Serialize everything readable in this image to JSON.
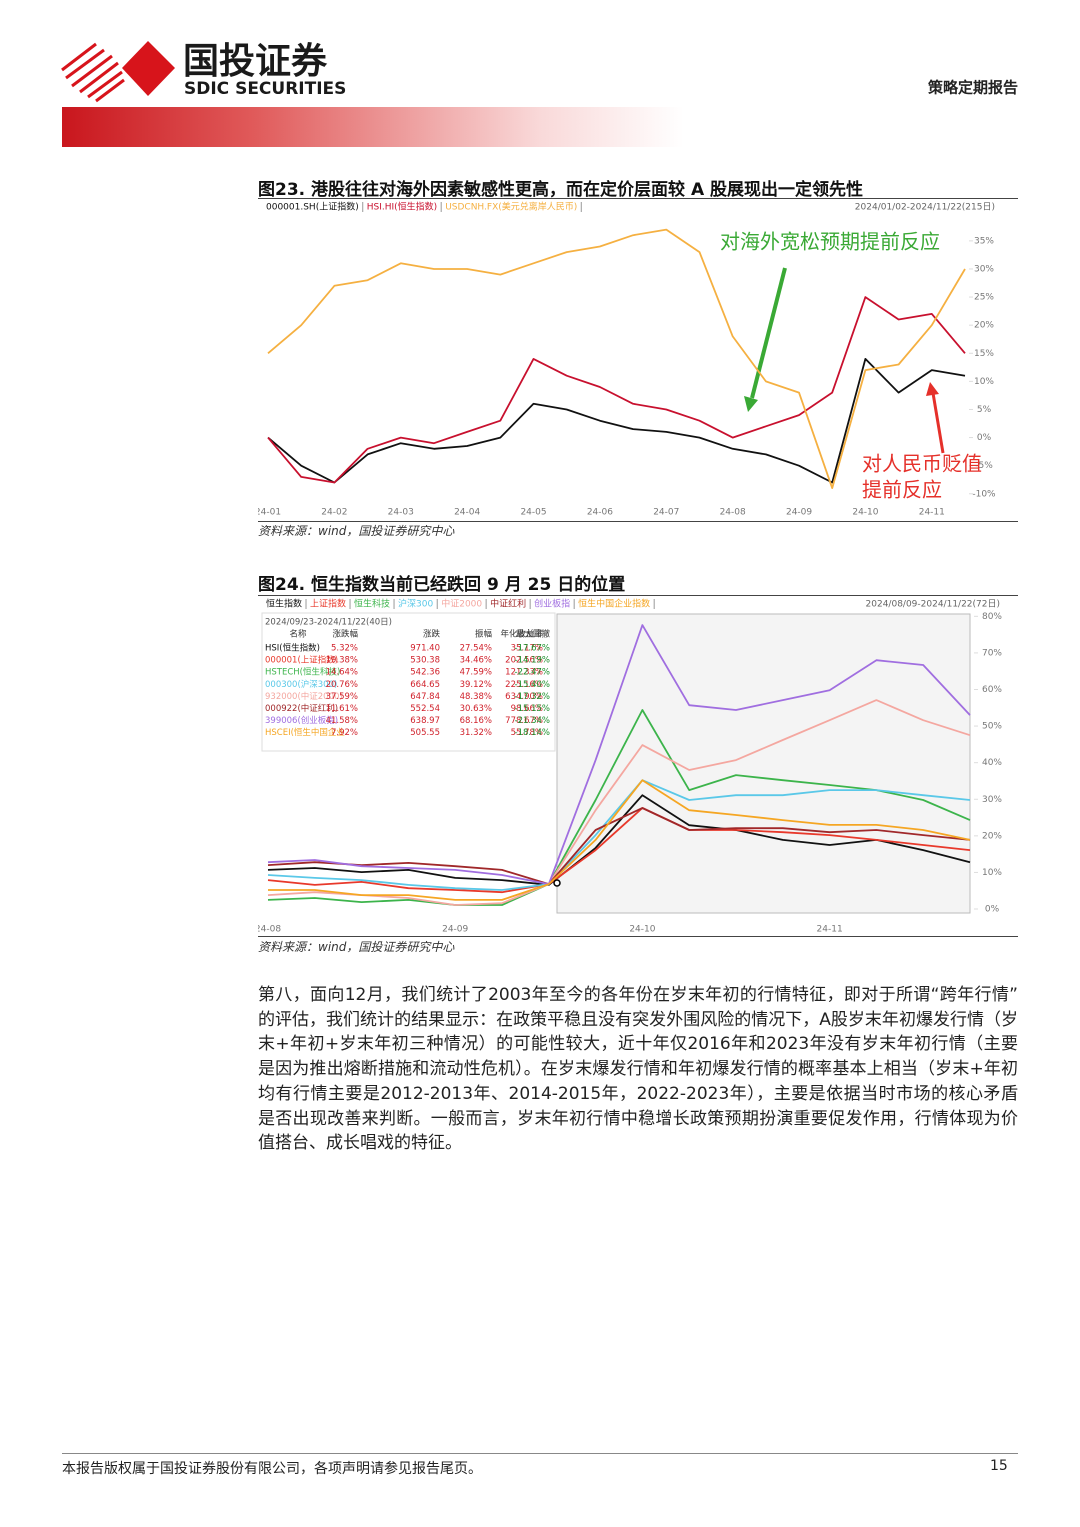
{
  "header": {
    "logo_cn": "国投证券",
    "logo_en": "SDIC SECURITIES",
    "report_type": "策略定期报告"
  },
  "figures": [
    {
      "caption": "图23. 港股往往对海外因素敏感性更高，而在定价层面较 A 股展现出一定领先性",
      "source": "资料来源：wind，国投证券研究中心",
      "chart_data": {
        "type": "line",
        "date_range": "2024/01/02-2024/11/22(215日)",
        "categories": [
          "24-01",
          null,
          "24-02",
          null,
          "24-03",
          null,
          "24-04",
          null,
          "24-05",
          null,
          "24-06",
          null,
          "24-07",
          null,
          "24-08",
          null,
          "24-09",
          null,
          "24-10",
          null,
          "24-11",
          null
        ],
        "ylim": [
          -12,
          38
        ],
        "yticks": [
          {
            "value": -10,
            "label": "-10%"
          },
          {
            "value": -5,
            "label": "-5%"
          },
          {
            "value": 0,
            "label": "0%"
          },
          {
            "value": 5,
            "label": "5%"
          },
          {
            "value": 10,
            "label": "10%"
          },
          {
            "value": 15,
            "label": "15%"
          },
          {
            "value": 20,
            "label": "20%"
          },
          {
            "value": 25,
            "label": "25%"
          },
          {
            "value": 30,
            "label": "30%"
          },
          {
            "value": 35,
            "label": "35%"
          }
        ],
        "grid": false,
        "series": [
          {
            "name": "000001.SH(上证指数)",
            "color": "#111111",
            "values": [
              0,
              -5,
              -8,
              -3,
              -1,
              -2,
              -1.5,
              0,
              6,
              5,
              3,
              1.5,
              1,
              0,
              -2,
              -3,
              -5,
              -8,
              14,
              8,
              12,
              11
            ]
          },
          {
            "name": "HSI.HI(恒生指数)",
            "color": "#c8102e",
            "values": [
              0,
              -7,
              -8,
              -2,
              0,
              -1,
              1,
              3,
              14,
              11,
              9,
              6,
              5,
              3,
              0,
              2,
              4,
              8,
              25,
              21,
              22,
              15
            ]
          },
          {
            "name": "USDCNH.FX(美元兑离岸人民币)",
            "color": "#f5b041",
            "values": [
              15,
              20,
              27,
              28,
              31,
              30,
              30,
              29,
              31,
              33,
              34,
              36,
              37,
              33,
              18,
              10,
              8,
              -9,
              12,
              13,
              20,
              30
            ]
          }
        ],
        "annotations": [
          {
            "lines": [
              "对海外宽松预期提前反应"
            ],
            "color": "#3aa935"
          },
          {
            "lines": [
              "对人民币贬值",
              "提前反应"
            ],
            "color": "#e5302a"
          }
        ]
      }
    },
    {
      "caption": "图24. 恒生指数当前已经跌回 9 月 25 日的位置",
      "source": "资料来源：wind，国投证券研究中心",
      "chart_data": {
        "type": "line",
        "date_range": "2024/08/09-2024/11/22(72日)",
        "categories": [
          "24-08",
          null,
          null,
          null,
          "24-09",
          null,
          null,
          null,
          "24-10",
          null,
          null,
          null,
          "24-11",
          null,
          null,
          null
        ],
        "ylim": [
          -3,
          82
        ],
        "yticks": [
          {
            "value": 0,
            "label": "0%"
          },
          {
            "value": 10,
            "label": "10%"
          },
          {
            "value": 20,
            "label": "20%"
          },
          {
            "value": 30,
            "label": "30%"
          },
          {
            "value": 40,
            "label": "40%"
          },
          {
            "value": 50,
            "label": "50%"
          },
          {
            "value": 60,
            "label": "60%"
          },
          {
            "value": 70,
            "label": "70%"
          },
          {
            "value": 80,
            "label": "80%"
          }
        ],
        "grid": false,
        "series": [
          {
            "name": "恒生指数",
            "color": "#111111",
            "values": [
              10.7,
              11.2,
              10.1,
              10.7,
              8.5,
              7.9,
              6.6,
              16.7,
              31.1,
              22.9,
              21.6,
              18.9,
              17.5,
              18.9,
              16.1,
              12.8
            ]
          },
          {
            "name": "上证指数",
            "color": "#e8392b",
            "values": [
              7.9,
              6.6,
              7.4,
              5.7,
              5.2,
              4.6,
              6.8,
              16.1,
              27.6,
              21.6,
              21.6,
              21.0,
              20.2,
              18.9,
              17.5,
              16.1
            ]
          },
          {
            "name": "恒生科技",
            "color": "#3cb44b",
            "values": [
              2.5,
              3.0,
              1.9,
              2.5,
              1.1,
              1.1,
              6.8,
              29.8,
              54.4,
              32.5,
              36.6,
              35.2,
              33.9,
              32.5,
              29.8,
              24.3
            ]
          },
          {
            "name": "沪深300",
            "color": "#5ac8e8",
            "values": [
              9.3,
              8.5,
              7.9,
              6.6,
              5.7,
              5.2,
              6.8,
              20.2,
              35.2,
              29.8,
              31.1,
              31.1,
              32.5,
              32.5,
              31.1,
              29.8
            ]
          },
          {
            "name": "中证2000",
            "color": "#f4a7a0",
            "values": [
              3.8,
              4.6,
              3.8,
              3.0,
              1.1,
              1.6,
              6.8,
              27.0,
              44.8,
              38.0,
              40.7,
              46.2,
              51.6,
              57.1,
              51.6,
              47.5
            ]
          },
          {
            "name": "中证红利",
            "color": "#a0282a",
            "values": [
              12.0,
              12.8,
              12.0,
              12.6,
              11.7,
              10.7,
              6.8,
              21.6,
              27.6,
              21.6,
              22.1,
              22.1,
              21.0,
              21.6,
              20.2,
              18.9
            ]
          },
          {
            "name": "创业板指",
            "color": "#a06ee0",
            "values": [
              12.8,
              13.4,
              11.7,
              11.2,
              10.7,
              9.3,
              6.8,
              40.7,
              77.6,
              55.7,
              54.4,
              57.1,
              59.8,
              68.0,
              66.7,
              53.0
            ]
          },
          {
            "name": "恒生中国企业指数",
            "color": "#f5a623",
            "values": [
              5.2,
              5.2,
              3.8,
              3.8,
              2.5,
              2.5,
              6.8,
              18.9,
              35.2,
              27.0,
              25.7,
              24.3,
              23.0,
              23.0,
              21.6,
              18.9
            ]
          }
        ]
      },
      "table": {
        "period": "2024/09/23-2024/11/22(40日)",
        "headers": [
          "名称",
          "涨跌幅",
          "涨跌",
          "振幅",
          "年化收益率",
          "最大回撤"
        ],
        "rows": [
          [
            "HSI(恒生指数)",
            "5.32%",
            "971.40",
            "27.54%",
            "35.17%",
            "-17.67%"
          ],
          [
            "000001(上证指数)",
            "19.38%",
            "530.38",
            "34.46%",
            "202.56%",
            "-14.19%"
          ],
          [
            "HSTECH(恒生科技)",
            "14.64%",
            "542.36",
            "47.59%",
            "121.33%",
            "-22.47%"
          ],
          [
            "000300(沪深300)",
            "20.76%",
            "664.65",
            "39.12%",
            "225.16%",
            "-15.40%"
          ],
          [
            "932000(中证2000)",
            "37.59%",
            "647.84",
            "48.38%",
            "634.90%",
            "-17.32%"
          ],
          [
            "000922(中证红利)",
            "11.61%",
            "552.54",
            "30.63%",
            "98.66%",
            "-15.15%"
          ],
          [
            "399006(创业板指)",
            "41.58%",
            "638.97",
            "68.16%",
            "778.67%",
            "-21.34%"
          ],
          [
            "HSCEI(恒生中国企业",
            "7.92%",
            "505.55",
            "31.32%",
            "55.78%",
            "-18.14%"
          ]
        ]
      }
    }
  ],
  "body": {
    "paragraph": "第八，面向12月，我们统计了2003年至今的各年份在岁末年初的行情特征，即对于所谓“跨年行情”的评估，我们统计的结果显示：在政策平稳且没有突发外围风险的情况下，A股岁末年初爆发行情（岁末+年初+岁末年初三种情况）的可能性较大，近十年仅2016年和2023年没有岁末年初行情（主要是因为推出熔断措施和流动性危机）。在岁末爆发行情和年初爆发行情的概率基本上相当（岁末+年初均有行情主要是2012-2013年、2014-2015年，2022-2023年），主要是依据当时市场的核心矛盾是否出现改善来判断。一般而言，岁末年初行情中稳增长政策预期扮演重要促发作用，行情体现为价值搭台、成长唱戏的特征。"
  },
  "footer": {
    "disclaimer": "本报告版权属于国投证券股份有限公司，各项声明请参见报告尾页。",
    "page": "15"
  }
}
